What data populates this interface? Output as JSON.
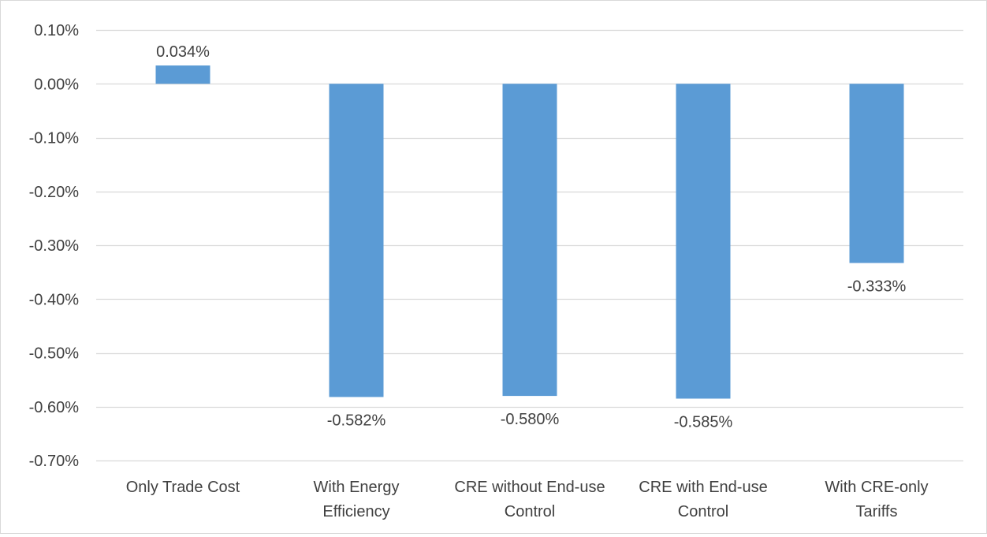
{
  "chart_data": {
    "type": "bar",
    "categories": [
      [
        "Only Trade Cost"
      ],
      [
        "With Energy",
        "Efficiency"
      ],
      [
        "CRE without End-use",
        "Control"
      ],
      [
        "CRE with End-use",
        "Control"
      ],
      [
        "With CRE-only",
        "Tariffs"
      ]
    ],
    "values": [
      0.034,
      -0.582,
      -0.58,
      -0.585,
      -0.333
    ],
    "data_labels": [
      "0.034%",
      "-0.582%",
      "-0.580%",
      "-0.585%",
      "-0.333%"
    ],
    "yticks": [
      "0.10%",
      "0.00%",
      "-0.10%",
      "-0.20%",
      "-0.30%",
      "-0.40%",
      "-0.50%",
      "-0.60%",
      "-0.70%"
    ],
    "ytick_values": [
      0.1,
      0.0,
      -0.1,
      -0.2,
      -0.3,
      -0.4,
      -0.5,
      -0.6,
      -0.7
    ],
    "ylim": [
      -0.7,
      0.1
    ],
    "title": "",
    "xlabel": "",
    "ylabel": "",
    "grid": true,
    "legend": false,
    "colors": {
      "bar": "#5b9bd5",
      "grid": "#d9d9d9",
      "text": "#404040"
    }
  }
}
